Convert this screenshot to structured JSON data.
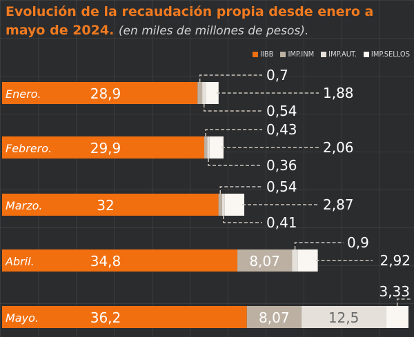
{
  "title": {
    "main": "Evolución de la recaudación propia desde enero a mayo de 2024.",
    "subtitle": "(en miles de millones de pesos)."
  },
  "legend": [
    {
      "name": "IIBB",
      "color": "#f26f10"
    },
    {
      "name": "IMP.INM",
      "color": "#bcb0a2"
    },
    {
      "name": "IMP.AUT.",
      "color": "#e5e0d9"
    },
    {
      "name": "IMP.SELLOS",
      "color": "#faf7f2"
    }
  ],
  "chart_data": {
    "type": "bar",
    "orientation": "horizontal",
    "stacked": true,
    "categories": [
      "Enero.",
      "Febrero.",
      "Marzo.",
      "Abril.",
      "Mayo."
    ],
    "series": [
      {
        "name": "IIBB",
        "values": [
          28.9,
          29.9,
          32,
          34.8,
          36.2
        ],
        "labels": [
          "28,9",
          "29,9",
          "32",
          "34,8",
          "36,2"
        ]
      },
      {
        "name": "IMP.INM",
        "values": [
          0.7,
          0.43,
          0.54,
          8.07,
          8.07
        ],
        "labels": [
          "0,7",
          "0,43",
          "0,54",
          "8,07",
          "8,07"
        ]
      },
      {
        "name": "IMP.AUT.",
        "values": [
          0.54,
          0.36,
          0.41,
          0.9,
          12.5
        ],
        "labels": [
          "0,54",
          "0,36",
          "0,41",
          "0,9",
          "12,5"
        ]
      },
      {
        "name": "IMP.SELLOS",
        "values": [
          1.88,
          2.06,
          2.87,
          2.92,
          3.33
        ],
        "labels": [
          "1,88",
          "2,06",
          "2,87",
          "2,92",
          "3,33"
        ]
      }
    ]
  }
}
